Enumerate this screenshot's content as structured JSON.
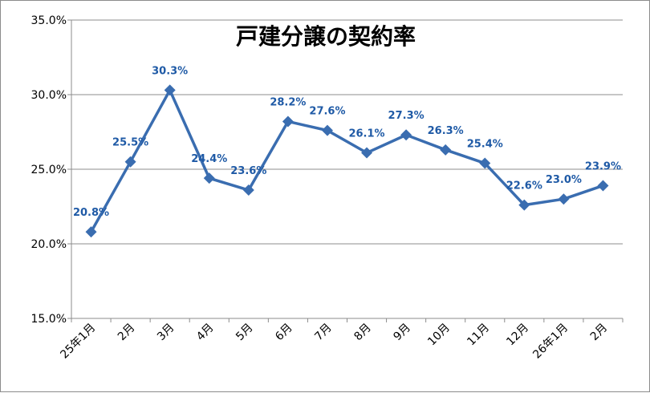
{
  "chart_data": {
    "type": "line",
    "title": "戸建分譲の契約率",
    "xlabel": "",
    "ylabel": "",
    "categories": [
      "25年1月",
      "2月",
      "3月",
      "4月",
      "5月",
      "6月",
      "7月",
      "8月",
      "9月",
      "10月",
      "11月",
      "12月",
      "26年1月",
      "2月"
    ],
    "series": [
      {
        "values": [
          20.8,
          25.5,
          30.3,
          24.4,
          23.6,
          28.2,
          27.6,
          26.1,
          27.3,
          26.3,
          25.4,
          22.6,
          23.0,
          23.9
        ],
        "labels": [
          "20.8%",
          "25.5%",
          "30.3%",
          "24.4%",
          "23.6%",
          "28.2%",
          "27.6%",
          "26.1%",
          "27.3%",
          "26.3%",
          "25.4%",
          "22.6%",
          "23.0%",
          "23.9%"
        ],
        "color": "#3a6db0",
        "label_color": "#1f5aa6",
        "marker": "diamond"
      }
    ],
    "ylim": [
      15.0,
      35.0
    ],
    "yticks": [
      "15.0%",
      "20.0%",
      "25.0%",
      "30.0%",
      "35.0%"
    ],
    "ytick_values": [
      15,
      20,
      25,
      30,
      35
    ],
    "grid": true,
    "legend": "none"
  }
}
